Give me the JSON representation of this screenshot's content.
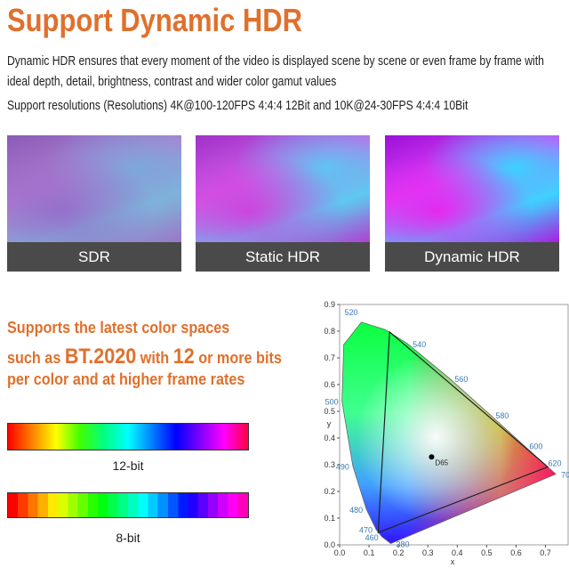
{
  "header": {
    "title": "Support Dynamic HDR"
  },
  "description": [
    "Dynamic HDR ensures that every moment of the video is displayed scene by scene or even frame by frame with ideal depth, detail, brightness, contrast and wider color gamut values",
    "Support resolutions (Resolutions) 4K@100-120FPS 4:4:4 12Bit and 10K@24-30FPS 4:4:4 10Bit"
  ],
  "comparison": [
    {
      "caption": "SDR"
    },
    {
      "caption": "Static HDR"
    },
    {
      "caption": "Dynamic HDR"
    }
  ],
  "color_space_text": {
    "line1": "Supports the latest color spaces",
    "line2": [
      "such as ",
      "BT.2020",
      " with ",
      "12",
      " or more bits"
    ],
    "line3": "per color and at higher frame rates"
  },
  "bars": [
    {
      "label": "12-bit"
    },
    {
      "label": "8-bit"
    }
  ],
  "cie_diagram": {
    "xlim": [
      0,
      0.78
    ],
    "ylim": [
      0,
      0.9
    ],
    "xticks": [
      {
        "value": 0,
        "label": "0.0"
      },
      0.1,
      0.2,
      0.3,
      0.4,
      0.5,
      0.6,
      0.7
    ],
    "yticks": [
      {
        "value": 0,
        "label": "0.0"
      },
      0.1,
      0.2,
      0.3,
      0.4,
      0.5,
      0.6,
      0.7,
      0.8,
      0.9
    ],
    "x_label": "x",
    "y_label": "y",
    "locus": [
      {
        "label": "380",
        "x": 0.174,
        "y": 0.005
      },
      {
        "label": "460",
        "x": 0.144,
        "y": 0.03
      },
      {
        "label": "470",
        "x": 0.124,
        "y": 0.058
      },
      {
        "label": "480",
        "x": 0.091,
        "y": 0.133
      },
      {
        "label": "490",
        "x": 0.045,
        "y": 0.295
      },
      {
        "label": "500",
        "x": 0.008,
        "y": 0.538
      },
      {
        "label": null,
        "x": 0.014,
        "y": 0.75
      },
      {
        "label": "520",
        "x": 0.074,
        "y": 0.834
      },
      {
        "label": null,
        "x": 0.155,
        "y": 0.806
      },
      {
        "label": "540",
        "x": 0.23,
        "y": 0.754
      },
      {
        "label": "560",
        "x": 0.373,
        "y": 0.624
      },
      {
        "label": "580",
        "x": 0.512,
        "y": 0.487
      },
      {
        "label": "600",
        "x": 0.627,
        "y": 0.372
      },
      {
        "label": "620",
        "x": 0.691,
        "y": 0.308
      },
      {
        "label": "700",
        "x": 0.735,
        "y": 0.265
      }
    ],
    "white_point": {
      "label": "D65",
      "x": 0.3127,
      "y": 0.329
    },
    "gamut": {
      "x": [
        0.708,
        0.17,
        0.131
      ],
      "y": [
        0.292,
        0.797,
        0.046
      ]
    }
  }
}
